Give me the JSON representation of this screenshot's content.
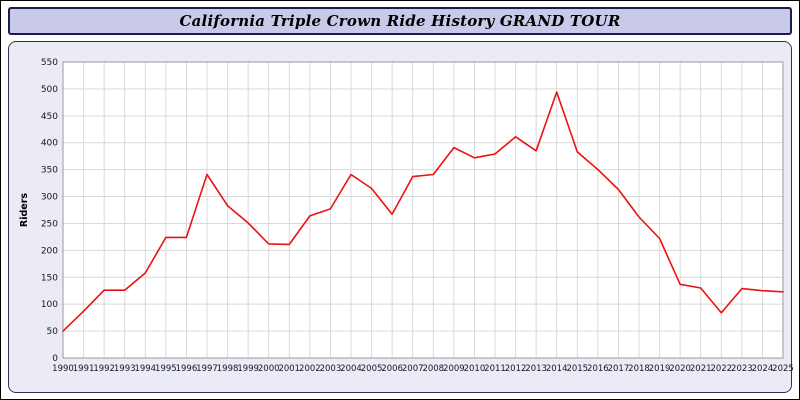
{
  "window": {
    "title": "California Triple Crown Ride History GRAND TOUR"
  },
  "chart_data": {
    "type": "line",
    "title": "California Triple Crown Ride History GRAND TOUR",
    "xlabel": "",
    "ylabel": "Riders",
    "ylim": [
      0,
      550
    ],
    "y_tick_step": 50,
    "grid": true,
    "legend_position": "none",
    "x": [
      "1990",
      "1991",
      "1992",
      "1993",
      "1994",
      "1995",
      "1996",
      "1997",
      "1998",
      "1999",
      "2000",
      "2001",
      "2002",
      "2003",
      "2004",
      "2005",
      "2006",
      "2007",
      "2008",
      "2009",
      "2010",
      "2011",
      "2012",
      "2013",
      "2014",
      "2015",
      "2016",
      "2017",
      "2018",
      "2019",
      "2020",
      "2021",
      "2022",
      "2023",
      "2024",
      "2025"
    ],
    "series": [
      {
        "name": "Riders",
        "color": "#ee1111",
        "values": [
          50,
          87,
          126,
          126,
          158,
          224,
          224,
          341,
          283,
          251,
          212,
          211,
          264,
          277,
          341,
          315,
          267,
          337,
          341,
          391,
          372,
          379,
          411,
          385,
          494,
          383,
          350,
          313,
          262,
          222,
          137,
          130,
          84,
          129,
          125,
          123
        ]
      }
    ],
    "colors": {
      "line": "#ee1111",
      "titlebar_bg": "#c9c9ea",
      "panel_bg": "#ebebf6",
      "plot_bg": "#ffffff",
      "grid": "#d9d9d9",
      "plot_border": "#9a9a9a",
      "tick_text": "#15152e",
      "border": "#1c1c4a"
    }
  }
}
